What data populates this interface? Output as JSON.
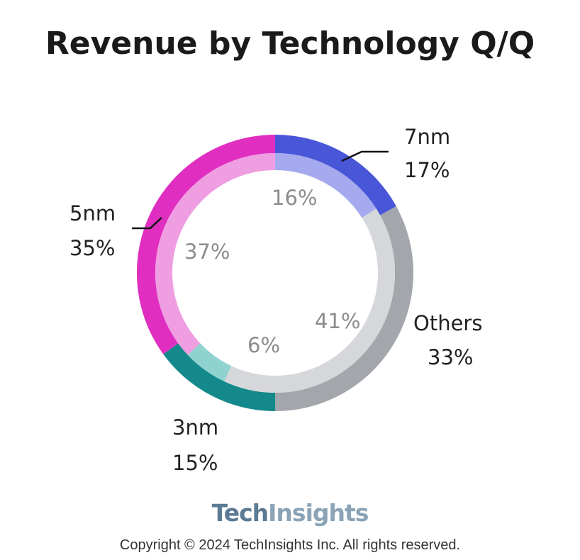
{
  "chart_data": {
    "type": "pie",
    "title": "Revenue by Technology Q/Q",
    "outer_ring": [
      {
        "category": "7nm",
        "label": "17%",
        "value": 17,
        "color": "#4a56d8"
      },
      {
        "category": "Others",
        "label": "33%",
        "value": 33,
        "color": "#a3a6ab"
      },
      {
        "category": "3nm",
        "label": "15%",
        "value": 15,
        "color": "#13898b"
      },
      {
        "category": "5nm",
        "label": "35%",
        "value": 35,
        "color": "#e02fc0"
      }
    ],
    "inner_ring": [
      {
        "category": "7nm",
        "label": "16%",
        "value": 16,
        "color": "#a5aaee"
      },
      {
        "category": "Others",
        "label": "41%",
        "value": 41,
        "color": "#d5d7da"
      },
      {
        "category": "3nm",
        "label": "6%",
        "value": 6,
        "color": "#8fd2d0"
      },
      {
        "category": "5nm",
        "label": "37%",
        "value": 37,
        "color": "#ef9ee2"
      }
    ]
  },
  "footer": {
    "brand_part1": "Tech",
    "brand_part2": "Insights",
    "copyright": "Copyright © 2024 TechInsights Inc.  All rights reserved."
  }
}
